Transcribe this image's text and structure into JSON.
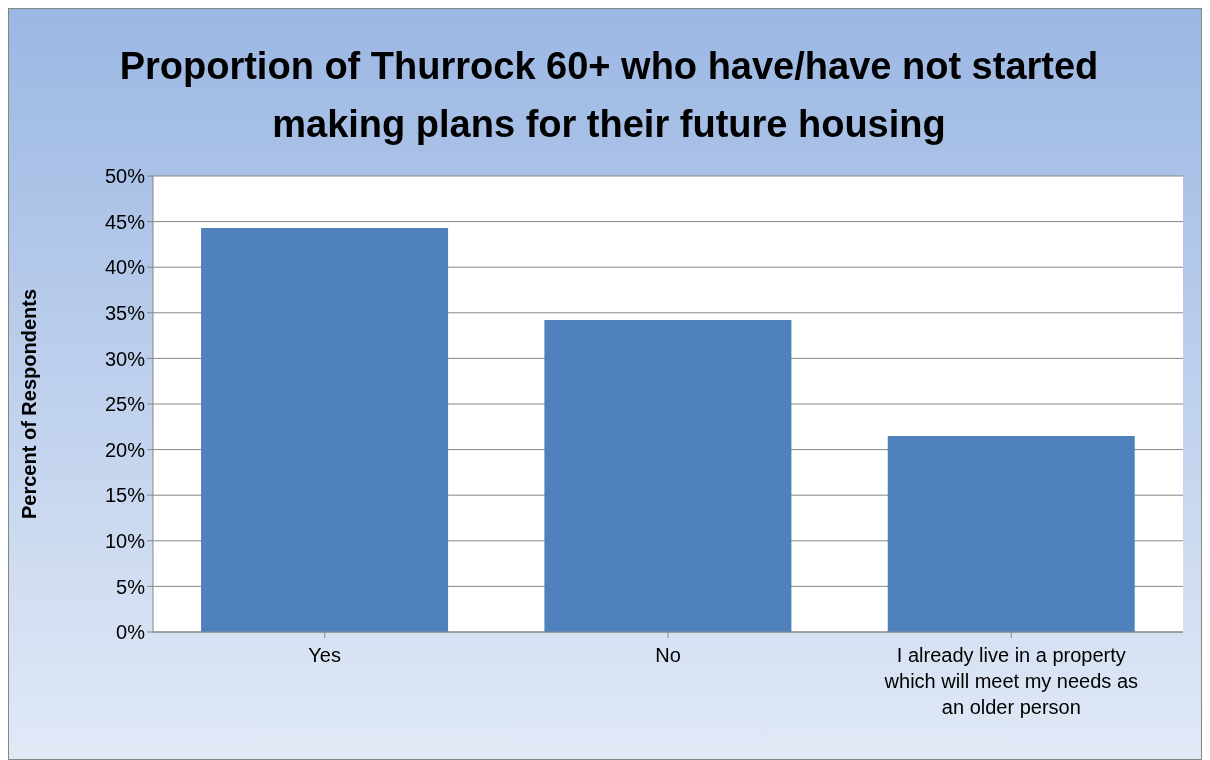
{
  "chart_data": {
    "type": "bar",
    "title": "Proportion of Thurrock 60+ who have/have not started making plans for their future housing",
    "ylabel": "Percent of Respondents",
    "categories": [
      "Yes",
      "No",
      "I already live in a property which will meet my needs as an older person"
    ],
    "values": [
      44.3,
      34.2,
      21.5
    ],
    "color": "#4f81bd",
    "ylim": [
      0,
      50
    ],
    "yticks": [
      {
        "value": 0,
        "label": "0%"
      },
      {
        "value": 5,
        "label": "5%"
      },
      {
        "value": 10,
        "label": "10%"
      },
      {
        "value": 15,
        "label": "15%"
      },
      {
        "value": 20,
        "label": "20%"
      },
      {
        "value": 25,
        "label": "25%"
      },
      {
        "value": 30,
        "label": "30%"
      },
      {
        "value": 35,
        "label": "35%"
      },
      {
        "value": 40,
        "label": "40%"
      },
      {
        "value": 45,
        "label": "45%"
      },
      {
        "value": 50,
        "label": "50%"
      }
    ],
    "grid": "y"
  }
}
